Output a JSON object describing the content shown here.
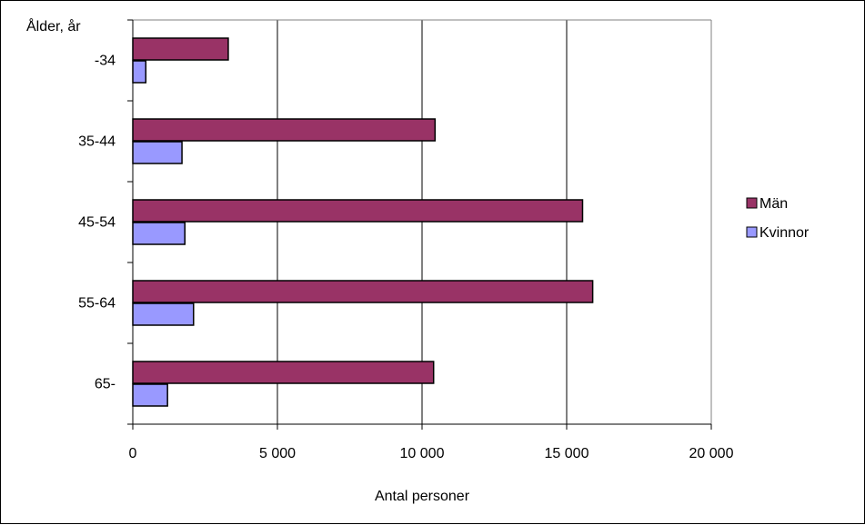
{
  "chart_data": {
    "type": "bar",
    "orientation": "horizontal",
    "categories": [
      "-34",
      "35-44",
      "45-54",
      "55-64",
      "65-"
    ],
    "series": [
      {
        "name": "Män",
        "values": [
          3300,
          10450,
          15550,
          15900,
          10400
        ],
        "color": "#993366"
      },
      {
        "name": "Kvinnor",
        "values": [
          450,
          1700,
          1800,
          2100,
          1200
        ],
        "color": "#9999ff"
      }
    ],
    "xlabel": "Antal personer",
    "ylabel": "Ålder, år",
    "xlim": [
      0,
      20000
    ],
    "x_ticks": [
      0,
      5000,
      10000,
      15000,
      20000
    ],
    "x_tick_labels": [
      "0",
      "5 000",
      "10 000",
      "15 000",
      "20 000"
    ],
    "grid": "vertical",
    "legend_position": "right"
  }
}
